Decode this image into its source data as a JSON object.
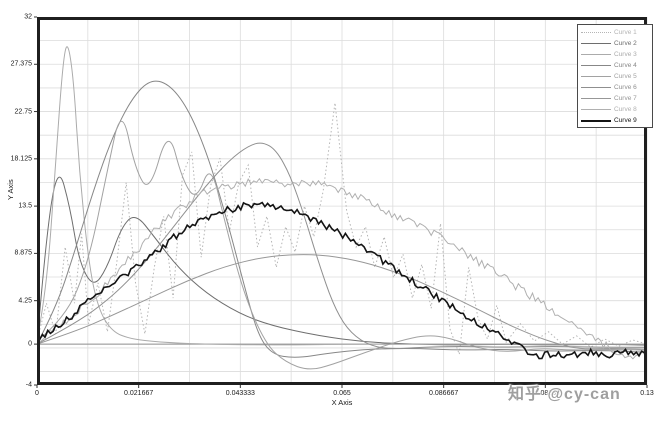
{
  "watermark": {
    "text": "知乎 @cy-can"
  },
  "chart_data": {
    "type": "line",
    "title": "",
    "xlabel": "X Axis",
    "ylabel": "Y Axis",
    "xlim": [
      0,
      0.13
    ],
    "ylim": [
      -4,
      32
    ],
    "x_ticks": {
      "values": [
        0,
        0.021667,
        0.043333,
        0.065,
        0.086667,
        0.108333,
        0.13
      ],
      "labels": [
        "0",
        "0.021667",
        "0.043333",
        "0.065",
        "0.086667",
        "0.108333",
        "0.13"
      ]
    },
    "y_ticks": {
      "values": [
        32,
        27.375,
        22.75,
        18.125,
        13.5,
        8.875,
        4.25,
        0,
        -4
      ],
      "labels": [
        "32",
        "27.375",
        "22.75",
        "18.125",
        "13.5",
        "8.875",
        "4.25",
        "0",
        "-4"
      ]
    },
    "grid": {
      "on": true,
      "x_minor_step": 0.0108333,
      "y_minor_step": 2.3125,
      "color": "#dcdcdc",
      "zero_line_color": "#8c8c8c",
      "frame_color": "#1f1f1f"
    },
    "legend": {
      "position": "top-right",
      "border": true
    },
    "series": [
      {
        "name": "Curve 1",
        "color": "#b5b5b5",
        "dash": "1.5,2.4",
        "width": 1,
        "noise": 0,
        "smooth": false,
        "points": [
          [
            0,
            0.3
          ],
          [
            0.002,
            4
          ],
          [
            0.004,
            1
          ],
          [
            0.006,
            9.5
          ],
          [
            0.008,
            4
          ],
          [
            0.0095,
            10.8
          ],
          [
            0.011,
            2
          ],
          [
            0.013,
            6
          ],
          [
            0.015,
            1.2
          ],
          [
            0.017,
            8
          ],
          [
            0.019,
            15.8
          ],
          [
            0.021,
            6
          ],
          [
            0.023,
            1
          ],
          [
            0.025,
            7.5
          ],
          [
            0.027,
            12.5
          ],
          [
            0.029,
            4.5
          ],
          [
            0.031,
            16.5
          ],
          [
            0.033,
            18.8
          ],
          [
            0.035,
            8.5
          ],
          [
            0.037,
            15.5
          ],
          [
            0.039,
            18.2
          ],
          [
            0.041,
            11
          ],
          [
            0.043,
            15.8
          ],
          [
            0.045,
            17.5
          ],
          [
            0.047,
            9.5
          ],
          [
            0.049,
            12.5
          ],
          [
            0.051,
            7.5
          ],
          [
            0.053,
            11.5
          ],
          [
            0.055,
            9
          ],
          [
            0.057,
            13.5
          ],
          [
            0.059,
            10.5
          ],
          [
            0.061,
            15
          ],
          [
            0.0635,
            23.6
          ],
          [
            0.066,
            13
          ],
          [
            0.068,
            9.5
          ],
          [
            0.07,
            11.5
          ],
          [
            0.072,
            7.5
          ],
          [
            0.074,
            10.5
          ],
          [
            0.076,
            6.5
          ],
          [
            0.078,
            8.8
          ],
          [
            0.08,
            4.5
          ],
          [
            0.082,
            7.8
          ],
          [
            0.084,
            3.5
          ],
          [
            0.086,
            11.8
          ],
          [
            0.088,
            1.5
          ],
          [
            0.09,
            -1
          ],
          [
            0.092,
            7.5
          ],
          [
            0.094,
            2.5
          ],
          [
            0.096,
            0.5
          ],
          [
            0.098,
            3.8
          ],
          [
            0.1,
            0.2
          ],
          [
            0.103,
            2
          ],
          [
            0.106,
            0.3
          ],
          [
            0.109,
            1.2
          ],
          [
            0.112,
            0
          ],
          [
            0.115,
            0.8
          ],
          [
            0.118,
            -0.3
          ],
          [
            0.121,
            0.5
          ],
          [
            0.124,
            -0.2
          ],
          [
            0.127,
            0.4
          ],
          [
            0.13,
            0
          ]
        ]
      },
      {
        "name": "Curve 2",
        "color": "#6e6e6e",
        "dash": null,
        "width": 1,
        "noise": 0,
        "smooth": true,
        "points": [
          [
            0,
            0
          ],
          [
            0.002,
            11
          ],
          [
            0.0045,
            17.6
          ],
          [
            0.007,
            13.5
          ],
          [
            0.009,
            8
          ],
          [
            0.012,
            5.5
          ],
          [
            0.015,
            7.5
          ],
          [
            0.018,
            11.5
          ],
          [
            0.021,
            12.8
          ],
          [
            0.025,
            10.5
          ],
          [
            0.03,
            7.5
          ],
          [
            0.036,
            5
          ],
          [
            0.043,
            3
          ],
          [
            0.05,
            1.8
          ],
          [
            0.06,
            0.8
          ],
          [
            0.07,
            0.2
          ],
          [
            0.08,
            0
          ],
          [
            0.09,
            -0.1
          ],
          [
            0.1,
            0
          ],
          [
            0.11,
            -0.1
          ],
          [
            0.12,
            0
          ],
          [
            0.13,
            -0.1
          ]
        ]
      },
      {
        "name": "Curve 3",
        "color": "#ababab",
        "dash": null,
        "width": 1,
        "noise": 0,
        "smooth": true,
        "points": [
          [
            0,
            0.4
          ],
          [
            0.002,
            5
          ],
          [
            0.004,
            18
          ],
          [
            0.0055,
            27.5
          ],
          [
            0.0065,
            29.8
          ],
          [
            0.0078,
            26
          ],
          [
            0.009,
            17
          ],
          [
            0.011,
            8
          ],
          [
            0.013,
            3.5
          ],
          [
            0.016,
            1.2
          ],
          [
            0.02,
            0.5
          ],
          [
            0.026,
            0.2
          ],
          [
            0.035,
            0
          ],
          [
            0.05,
            -0.1
          ],
          [
            0.07,
            0
          ],
          [
            0.1,
            0
          ],
          [
            0.13,
            0
          ]
        ]
      },
      {
        "name": "Curve 4",
        "color": "#878787",
        "dash": null,
        "width": 1,
        "noise": 0,
        "smooth": true,
        "points": [
          [
            0,
            0
          ],
          [
            0.004,
            3.5
          ],
          [
            0.008,
            9
          ],
          [
            0.012,
            15
          ],
          [
            0.016,
            20.2
          ],
          [
            0.02,
            23.9
          ],
          [
            0.024,
            25.9
          ],
          [
            0.028,
            25.5
          ],
          [
            0.032,
            23.2
          ],
          [
            0.036,
            19
          ],
          [
            0.04,
            13
          ],
          [
            0.044,
            6
          ],
          [
            0.047,
            1
          ],
          [
            0.05,
            -1
          ],
          [
            0.055,
            -1.4
          ],
          [
            0.062,
            -0.9
          ],
          [
            0.07,
            -0.5
          ],
          [
            0.08,
            -0.4
          ],
          [
            0.09,
            -0.6
          ],
          [
            0.1,
            -0.5
          ],
          [
            0.11,
            -0.7
          ],
          [
            0.12,
            -0.6
          ],
          [
            0.13,
            -0.8
          ]
        ]
      },
      {
        "name": "Curve 5",
        "color": "#a2a2a2",
        "dash": null,
        "width": 1,
        "noise": 0,
        "smooth": true,
        "points": [
          [
            0,
            0.3
          ],
          [
            0.006,
            2.5
          ],
          [
            0.011,
            8
          ],
          [
            0.015,
            17
          ],
          [
            0.018,
            23.4
          ],
          [
            0.021,
            17
          ],
          [
            0.024,
            14.8
          ],
          [
            0.028,
            21.3
          ],
          [
            0.031,
            16
          ],
          [
            0.034,
            14
          ],
          [
            0.037,
            17.8
          ],
          [
            0.04,
            12
          ],
          [
            0.044,
            5
          ],
          [
            0.0487,
            0
          ],
          [
            0.053,
            -1.8
          ],
          [
            0.058,
            -2.6
          ],
          [
            0.063,
            -2
          ],
          [
            0.07,
            -0.8
          ],
          [
            0.077,
            0.3
          ],
          [
            0.083,
            0.9
          ],
          [
            0.088,
            0.6
          ],
          [
            0.094,
            -0.4
          ],
          [
            0.1,
            -0.8
          ],
          [
            0.107,
            -0.4
          ],
          [
            0.114,
            -0.6
          ],
          [
            0.122,
            -0.5
          ],
          [
            0.13,
            -0.6
          ]
        ]
      },
      {
        "name": "Curve 6",
        "color": "#8f8f8f",
        "dash": null,
        "width": 1,
        "noise": 0,
        "smooth": true,
        "points": [
          [
            0,
            0
          ],
          [
            0.006,
            1.5
          ],
          [
            0.012,
            3.2
          ],
          [
            0.018,
            5.5
          ],
          [
            0.024,
            8.5
          ],
          [
            0.03,
            12
          ],
          [
            0.036,
            15.5
          ],
          [
            0.041,
            18
          ],
          [
            0.045,
            19.4
          ],
          [
            0.048,
            19.8
          ],
          [
            0.051,
            19
          ],
          [
            0.054,
            16.5
          ],
          [
            0.057,
            12.5
          ],
          [
            0.06,
            8
          ],
          [
            0.063,
            4
          ],
          [
            0.066,
            1.5
          ],
          [
            0.07,
            0
          ],
          [
            0.075,
            -0.5
          ],
          [
            0.082,
            -0.3
          ],
          [
            0.09,
            -0.2
          ],
          [
            0.1,
            -0.3
          ],
          [
            0.11,
            -0.2
          ],
          [
            0.12,
            -0.3
          ],
          [
            0.13,
            -0.3
          ]
        ]
      },
      {
        "name": "Curve 7",
        "color": "#979797",
        "dash": null,
        "width": 1,
        "noise": 0,
        "smooth": true,
        "points": [
          [
            0,
            0
          ],
          [
            0.008,
            1.2
          ],
          [
            0.016,
            2.8
          ],
          [
            0.024,
            4.5
          ],
          [
            0.032,
            6.2
          ],
          [
            0.04,
            7.6
          ],
          [
            0.048,
            8.5
          ],
          [
            0.055,
            8.8
          ],
          [
            0.062,
            8.7
          ],
          [
            0.07,
            8
          ],
          [
            0.078,
            6.8
          ],
          [
            0.086,
            5.2
          ],
          [
            0.094,
            3.4
          ],
          [
            0.1,
            2
          ],
          [
            0.106,
            0.8
          ],
          [
            0.111,
            0
          ],
          [
            0.116,
            -0.5
          ],
          [
            0.122,
            -0.4
          ],
          [
            0.13,
            -0.5
          ]
        ]
      },
      {
        "name": "Curve 8",
        "color": "#b0b0b0",
        "dash": null,
        "width": 1,
        "noise": 0.4,
        "smooth": false,
        "points": [
          [
            0,
            0.2
          ],
          [
            0.005,
            1.8
          ],
          [
            0.012,
            4.5
          ],
          [
            0.02,
            8.5
          ],
          [
            0.028,
            12.5
          ],
          [
            0.035,
            14.8
          ],
          [
            0.042,
            15.6
          ],
          [
            0.048,
            16.1
          ],
          [
            0.054,
            15.6
          ],
          [
            0.06,
            15.9
          ],
          [
            0.066,
            14.9
          ],
          [
            0.072,
            13.6
          ],
          [
            0.078,
            12.2
          ],
          [
            0.084,
            11
          ],
          [
            0.09,
            9.3
          ],
          [
            0.096,
            7.5
          ],
          [
            0.102,
            5.7
          ],
          [
            0.108,
            3.9
          ],
          [
            0.114,
            2.1
          ],
          [
            0.119,
            0.5
          ],
          [
            0.123,
            -0.7
          ],
          [
            0.127,
            -1.1
          ],
          [
            0.13,
            -0.6
          ]
        ]
      },
      {
        "name": "Curve 9",
        "color": "#141414",
        "dash": null,
        "width": 1.6,
        "noise": 0.35,
        "smooth": false,
        "points": [
          [
            0,
            0.2
          ],
          [
            0.004,
            1.6
          ],
          [
            0.008,
            3
          ],
          [
            0.012,
            4.6
          ],
          [
            0.016,
            6
          ],
          [
            0.02,
            7.2
          ],
          [
            0.024,
            8.6
          ],
          [
            0.028,
            10
          ],
          [
            0.032,
            11.4
          ],
          [
            0.036,
            12.4
          ],
          [
            0.04,
            13.1
          ],
          [
            0.044,
            13.5
          ],
          [
            0.048,
            13.7
          ],
          [
            0.052,
            13.4
          ],
          [
            0.056,
            12.8
          ],
          [
            0.06,
            12
          ],
          [
            0.064,
            11
          ],
          [
            0.068,
            9.9
          ],
          [
            0.072,
            8.7
          ],
          [
            0.076,
            7.4
          ],
          [
            0.08,
            6.2
          ],
          [
            0.084,
            5
          ],
          [
            0.088,
            3.8
          ],
          [
            0.092,
            2.6
          ],
          [
            0.096,
            1.5
          ],
          [
            0.1,
            0.5
          ],
          [
            0.104,
            -0.5
          ],
          [
            0.107,
            -1.2
          ],
          [
            0.11,
            -0.9
          ],
          [
            0.114,
            -1.1
          ],
          [
            0.118,
            -0.8
          ],
          [
            0.122,
            -1
          ],
          [
            0.126,
            -0.8
          ],
          [
            0.13,
            -0.9
          ]
        ]
      }
    ]
  }
}
